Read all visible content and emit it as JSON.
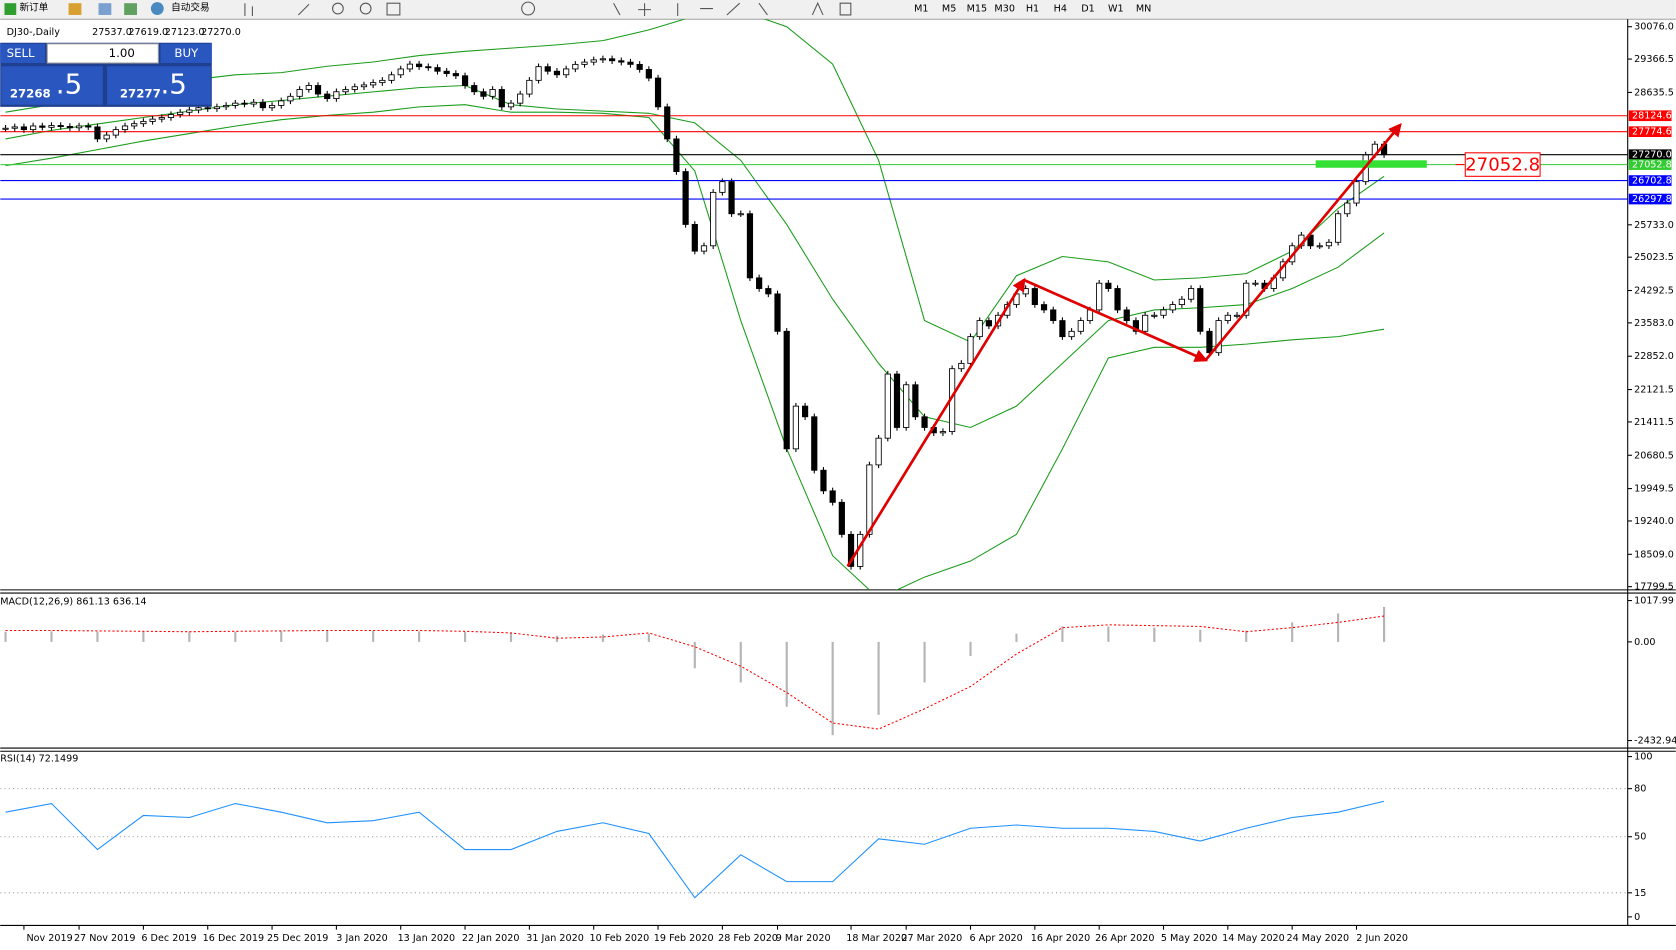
{
  "ui": {
    "toolbar": [
      "新订单",
      "自动交易"
    ],
    "timeframes": [
      "M1",
      "M5",
      "M15",
      "M30",
      "H1",
      "H4",
      "D1",
      "W1",
      "MN"
    ],
    "trade": {
      "sell": "SELL",
      "lot": "1.00",
      "buy": "BUY",
      "bid_big": "27268",
      "bid_small": ".5",
      "ask_big": "27277",
      "ask_small": ".5"
    }
  },
  "chart_data": [
    {
      "type": "candlestick",
      "title": "DJ30-,Daily",
      "ohlc": [
        {
          "value": 27537,
          "label": "27537.0"
        },
        {
          "value": 27619,
          "label": "27619.0"
        },
        {
          "value": 27123,
          "label": "27123.0"
        },
        {
          "value": 27270,
          "label": "27270.0"
        }
      ],
      "categories": [
        null,
        null,
        "Nov 2019",
        null,
        null,
        null,
        null,
        null,
        "27 Nov 2019",
        null,
        null,
        null,
        null,
        null,
        null,
        "6 Dec 2019",
        null,
        null,
        null,
        null,
        null,
        null,
        "16 Dec 2019",
        null,
        null,
        null,
        null,
        null,
        null,
        "25 Dec 2019",
        null,
        null,
        null,
        null,
        null,
        null,
        "3 Jan 2020",
        null,
        null,
        null,
        null,
        null,
        null,
        "13 Jan 2020",
        null,
        null,
        null,
        null,
        null,
        null,
        "22 Jan 2020",
        null,
        null,
        null,
        null,
        null,
        null,
        "31 Jan 2020",
        null,
        null,
        null,
        null,
        null,
        null,
        "10 Feb 2020",
        null,
        null,
        null,
        null,
        null,
        null,
        "19 Feb 2020",
        null,
        null,
        null,
        null,
        null,
        null,
        "28 Feb 2020",
        null,
        null,
        null,
        null,
        null,
        "9 Mar 2020",
        null,
        null,
        null,
        null,
        null,
        null,
        null,
        "18 Mar 2020",
        null,
        null,
        null,
        null,
        null,
        "27 Mar 2020",
        null,
        null,
        null,
        null,
        null,
        null,
        "6 Apr 2020",
        null,
        null,
        null,
        null,
        null,
        null,
        "16 Apr 2020",
        null,
        null,
        null,
        null,
        null,
        null,
        "26 Apr 2020",
        null,
        null,
        null,
        null,
        null,
        null,
        "5 May 2020",
        null,
        null,
        null,
        null,
        null,
        null,
        "14 May 2020",
        null,
        null,
        null,
        null,
        null,
        null,
        "24 May 2020",
        null,
        null,
        null,
        null,
        null,
        null,
        "2 Jun 2020",
        null,
        null,
        null
      ],
      "values": [
        27850,
        27880,
        27820,
        27900,
        27870,
        27910,
        27890,
        27860,
        27900,
        27880,
        27616,
        27700,
        27820,
        27900,
        27950,
        28000,
        28050,
        28085,
        28150,
        28200,
        28250,
        28300,
        28280,
        28320,
        28350,
        28400,
        28380,
        28420,
        28300,
        28350,
        28450,
        28550,
        28700,
        28787,
        28600,
        28500,
        28650,
        28700,
        28760,
        28800,
        28850,
        28900,
        29022,
        29150,
        29256,
        29200,
        29180,
        29100,
        29050,
        29000,
        28787,
        28650,
        28550,
        28700,
        28319,
        28400,
        28600,
        28900,
        29200,
        29100,
        29022,
        29150,
        29250,
        29300,
        29350,
        29373,
        29330,
        29300,
        29250,
        29139,
        28950,
        28319,
        27616,
        26900,
        25741,
        25156,
        25273,
        26444,
        26679,
        25976,
        25976,
        24570,
        24336,
        24218,
        23398,
        20821,
        21758,
        21524,
        20352,
        19900,
        19649,
        18946,
        18243,
        18946,
        20469,
        21055,
        22461,
        21290,
        22226,
        21524,
        21290,
        21172,
        21200,
        22578,
        22695,
        23281,
        23633,
        23516,
        23750,
        23984,
        24218,
        24336,
        23984,
        23867,
        23633,
        23281,
        23398,
        23633,
        23867,
        24453,
        24336,
        23867,
        23633,
        23398,
        23750,
        23750,
        23867,
        23984,
        24101,
        24336,
        23398,
        22930,
        23633,
        23750,
        23750,
        24453,
        24453,
        24336,
        24570,
        24921,
        25273,
        25507,
        25273,
        25273,
        25350,
        25976,
        26210,
        26679,
        27264,
        27500,
        27270
      ],
      "up_color": "#ffffff",
      "down_color": "#000000",
      "bands": {
        "color": "#1a9c1a",
        "upper": [
          28202,
          28366,
          28553,
          28741,
          28904,
          29022,
          29069,
          29209,
          29303,
          29443,
          29537,
          29607,
          29678,
          29771,
          30006,
          30310,
          30427,
          30076,
          29256,
          27147,
          23633,
          23164,
          24617,
          25038,
          24921,
          24523,
          24570,
          24663,
          25156,
          26093,
          26796
        ],
        "middle": [
          27616,
          27803,
          27944,
          28085,
          28225,
          28366,
          28459,
          28553,
          28647,
          28741,
          28787,
          28366,
          28272,
          28225,
          28178,
          27967,
          27147,
          25741,
          24101,
          22695,
          21524,
          21290,
          21758,
          22695,
          23633,
          23867,
          23914,
          23984,
          24336,
          24804,
          25554
        ],
        "lower": [
          27030,
          27194,
          27382,
          27569,
          27733,
          27897,
          28038,
          28131,
          28202,
          28319,
          28366,
          28202,
          28202,
          28178,
          28085,
          26913,
          23633,
          20821,
          18478,
          17541,
          18010,
          18361,
          18946,
          20821,
          22813,
          23047,
          23047,
          23117,
          23211,
          23281,
          23445
        ]
      },
      "ylim": [
        17799.5,
        30076
      ],
      "yticks": [
        {
          "value": 30076,
          "label": "30076.0"
        },
        {
          "value": 29366.5,
          "label": "29366.5"
        },
        {
          "value": 28635.5,
          "label": "28635.5"
        },
        {
          "value": 25733,
          "label": "25733.0"
        },
        {
          "value": 25023.5,
          "label": "25023.5"
        },
        {
          "value": 24292.5,
          "label": "24292.5"
        },
        {
          "value": 23583,
          "label": "23583.0"
        },
        {
          "value": 22852,
          "label": "22852.0"
        },
        {
          "value": 22121.5,
          "label": "22121.5"
        },
        {
          "value": 21411.5,
          "label": "21411.5"
        },
        {
          "value": 20680.5,
          "label": "20680.5"
        },
        {
          "value": 19949.5,
          "label": "19949.5"
        },
        {
          "value": 19240,
          "label": "19240.0"
        },
        {
          "value": 18509,
          "label": "18509.0"
        },
        {
          "value": 17799.5,
          "label": "17799.5"
        }
      ],
      "hlines": [
        {
          "value": 28124.6,
          "color": "#ff0000"
        },
        {
          "value": 27774.6,
          "color": "#ff0000"
        },
        {
          "value": 27270,
          "label": "27270.0",
          "color": "#000000"
        },
        {
          "value": 27052.8,
          "color": "#33cc33"
        },
        {
          "value": 26702.8,
          "color": "#0000ff"
        },
        {
          "value": 26297.8,
          "color": "#0000ff"
        }
      ]
    },
    {
      "type": "macd",
      "title": "MACD(12,26,9) 861.13 636.14",
      "ylim": [
        -2432.94,
        1017.99
      ],
      "yticks": [
        1017.99,
        {
          "value": 0,
          "label": "0.00"
        },
        -2432.94
      ],
      "histogram": [
        250,
        260,
        250,
        250,
        240,
        250,
        260,
        270,
        270,
        260,
        250,
        230,
        150,
        180,
        200,
        -650,
        -1000,
        -1600,
        -2300,
        -1800,
        -1000,
        -350,
        200,
        380,
        380,
        350,
        300,
        280,
        480,
        700,
        861.13
      ],
      "signal": [
        280,
        280,
        270,
        260,
        250,
        260,
        270,
        280,
        280,
        280,
        260,
        220,
        90,
        120,
        220,
        -120,
        -600,
        -1250,
        -2000,
        -2150,
        -1650,
        -1100,
        -300,
        350,
        420,
        400,
        380,
        250,
        350,
        480,
        636.14
      ],
      "hist_color": "#b4b4b4",
      "signal_color": "#ff0000"
    },
    {
      "type": "line",
      "title": "RSI(14) 72.1499",
      "ylim": [
        0,
        100
      ],
      "yticks": [
        100,
        80,
        50,
        15,
        0
      ],
      "grid": true,
      "values": [
        65.3,
        70.7,
        42,
        63.3,
        62,
        70.7,
        65.3,
        58.7,
        60,
        65.3,
        42,
        42,
        53.3,
        58.7,
        52,
        12,
        38.7,
        22,
        22,
        48.7,
        45.3,
        55.3,
        57.3,
        55.3,
        55.3,
        53.3,
        47.3,
        55.3,
        62,
        65.3,
        72.1499
      ],
      "color": "#1e90ff"
    }
  ]
}
